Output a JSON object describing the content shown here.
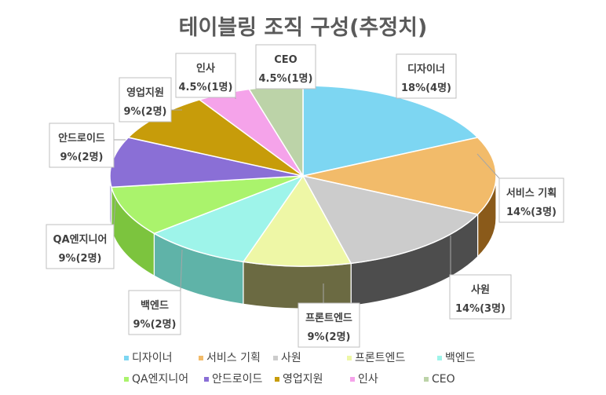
{
  "chart_data": {
    "type": "pie",
    "title": "테이블링 조직 구성(추정치)",
    "three_d": true,
    "legend_position": "bottom",
    "slices": [
      {
        "name": "디자이너",
        "value": 18,
        "count_label": "18%(4명)",
        "color": "#7dd6f2",
        "side_color": "#5fb6d2"
      },
      {
        "name": "서비스 기획",
        "value": 14,
        "count_label": "14%(3명)",
        "color": "#f2bb6a",
        "side_color": "#8a5a1a"
      },
      {
        "name": "사원",
        "value": 14,
        "count_label": "14%(3명)",
        "color": "#cccccc",
        "side_color": "#4d4d4d"
      },
      {
        "name": "프론트엔드",
        "value": 9,
        "count_label": "9%(2명)",
        "color": "#eef7a6",
        "side_color": "#6b6a42"
      },
      {
        "name": "백엔드",
        "value": 9,
        "count_label": "9%(2명)",
        "color": "#9ef4ea",
        "side_color": "#5fb3a8"
      },
      {
        "name": "QA엔지니어",
        "value": 9,
        "count_label": "9%(2명)",
        "color": "#aaf36c",
        "side_color": "#7cc43e"
      },
      {
        "name": "안드로이드",
        "value": 9,
        "count_label": "9%(2명)",
        "color": "#8a6fd6",
        "side_color": "#5e48a6"
      },
      {
        "name": "영업지원",
        "value": 9,
        "count_label": "9%(2명)",
        "color": "#c79c0a",
        "side_color": "#8c6d06"
      },
      {
        "name": "인사",
        "value": 4.5,
        "count_label": "4.5%(1명)",
        "color": "#f5a3ea",
        "side_color": "#c478b8"
      },
      {
        "name": "CEO",
        "value": 4.5,
        "count_label": "4.5%(1명)",
        "color": "#bcd3a8",
        "side_color": "#8aa278"
      }
    ]
  }
}
